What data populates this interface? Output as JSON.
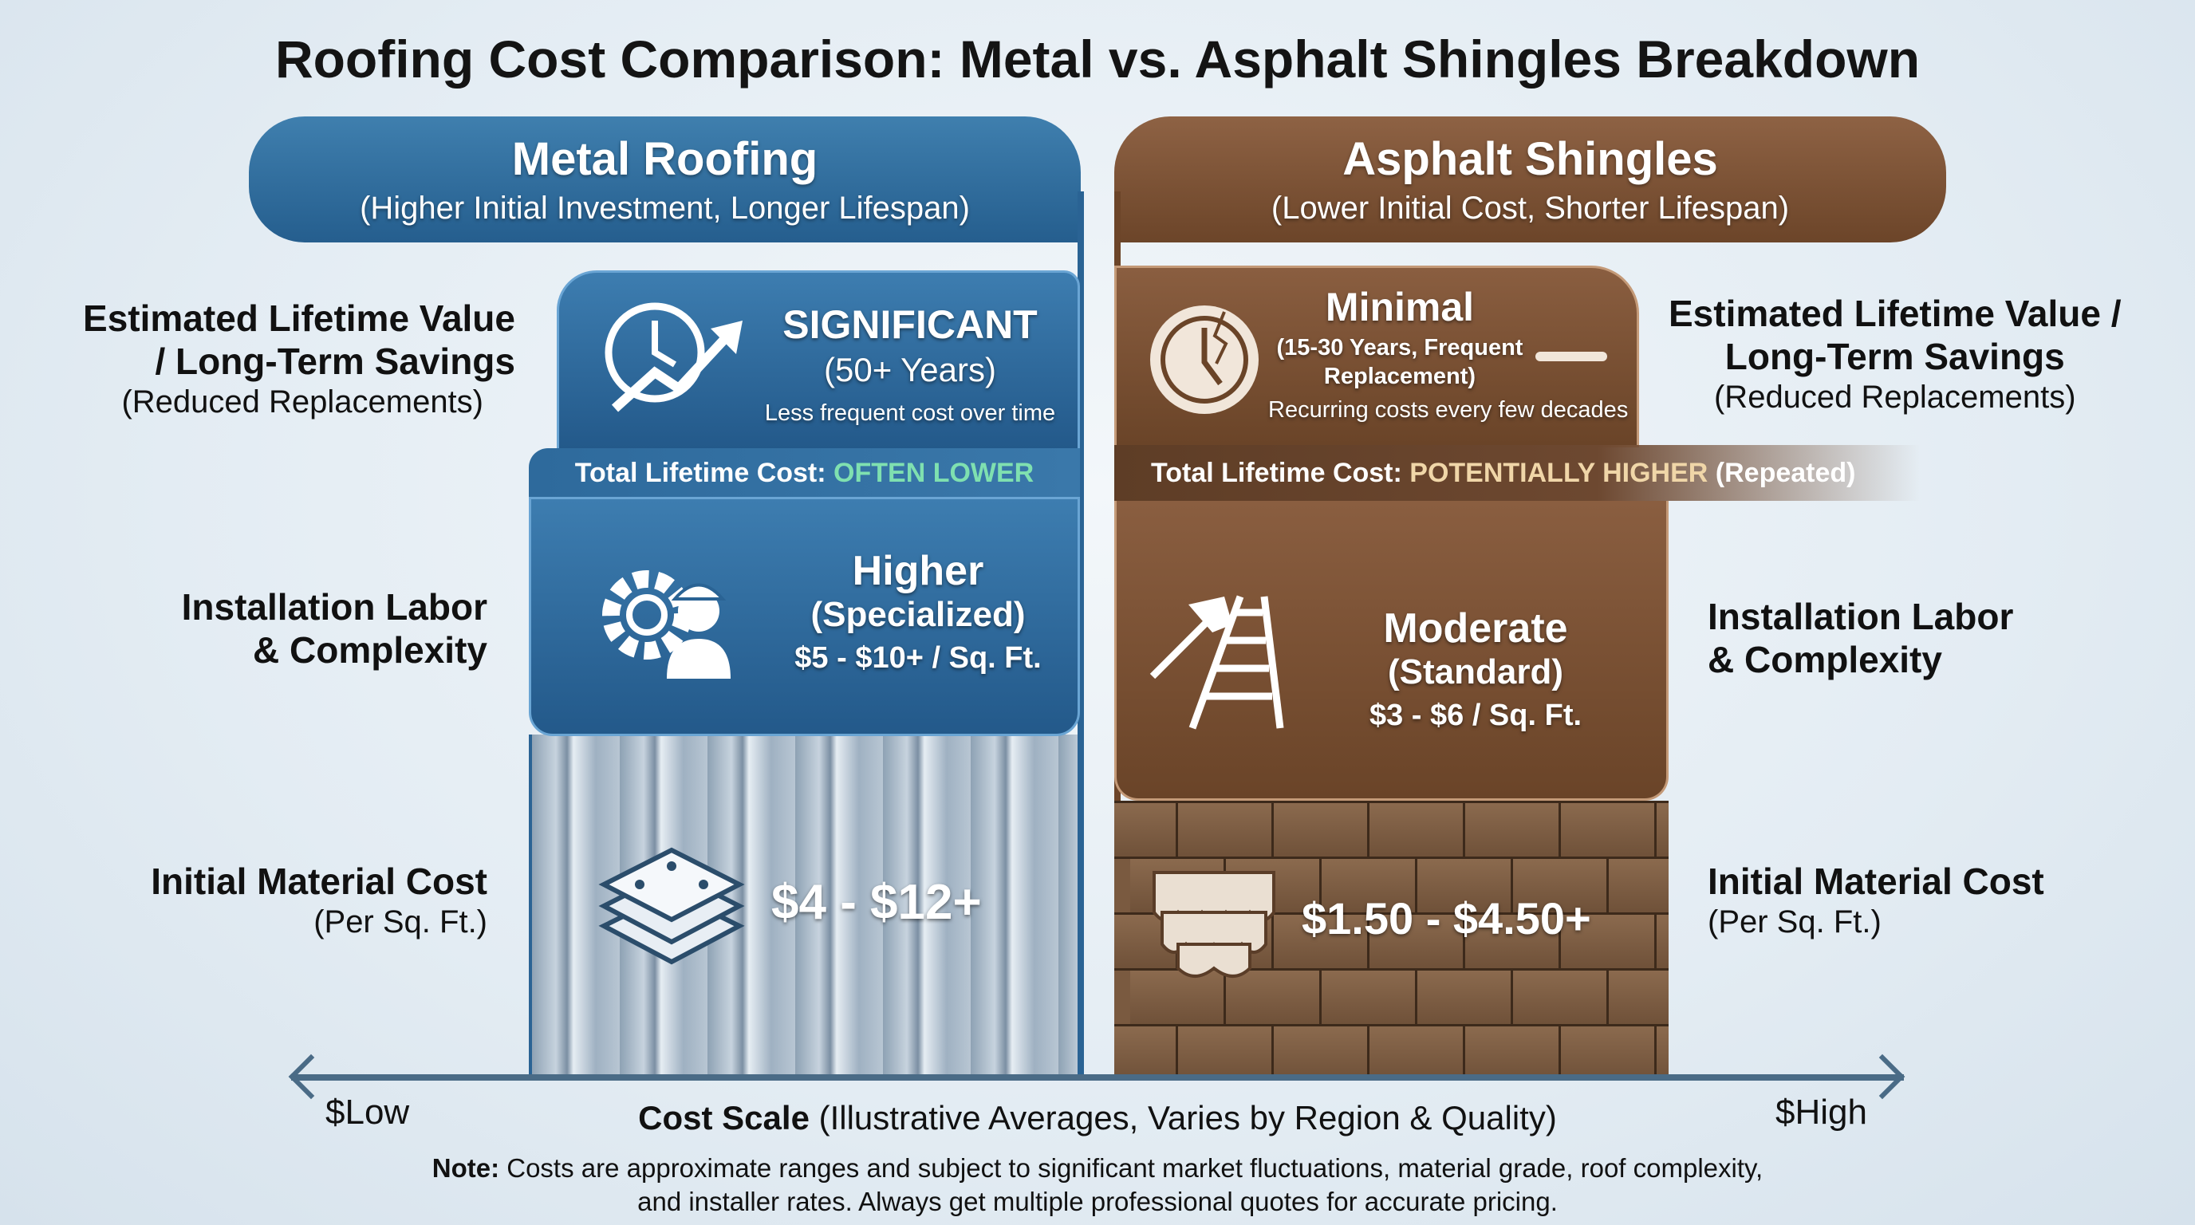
{
  "title": "Roofing Cost Comparison: Metal vs. Asphalt Shingles Breakdown",
  "colors": {
    "metal": "#2a6394",
    "asphalt": "#6c4529",
    "metal_highlight": "#7fe0b0",
    "asphalt_highlight": "#f0d6a8"
  },
  "metal": {
    "header": "Metal Roofing",
    "subheader": "(Higher Initial Investment, Longer Lifespan)",
    "lifetime": {
      "title": "SIGNIFICANT",
      "years": "(50+ Years)",
      "note": "Less frequent cost over time",
      "icon": "clock-growth-arrow-icon"
    },
    "total_label": "Total Lifetime Cost:",
    "total_value": "OFTEN LOWER",
    "install": {
      "title": "Higher",
      "sub": "(Specialized)",
      "price": "$5 - $10+ / Sq. Ft.",
      "icon": "gear-worker-icon"
    },
    "material": {
      "price": "$4 - $12+",
      "icon": "metal-sheets-icon"
    }
  },
  "asphalt": {
    "header": "Asphalt Shingles",
    "subheader": "(Lower Initial Cost, Shorter Lifespan)",
    "lifetime": {
      "title": "Minimal",
      "years": "(15-30 Years, Frequent Replacement)",
      "note": "Recurring costs every few decades",
      "icon": "broken-clock-icon"
    },
    "total_label": "Total Lifetime Cost:",
    "total_value": "POTENTIALLY HIGHER",
    "total_suffix": "(Repeated)",
    "install": {
      "title": "Moderate",
      "sub": "(Standard)",
      "price": "$3 - $6 / Sq. Ft.",
      "icon": "hammer-ladder-icon"
    },
    "material": {
      "price": "$1.50 - $4.50+",
      "icon": "shingles-icon"
    }
  },
  "left_labels": {
    "lifetime": "Estimated Lifetime Value",
    "lifetime2": "/ Long-Term Savings",
    "lifetime_sub": "(Reduced Replacements)",
    "install": "Installation Labor",
    "install2": "& Complexity",
    "material": "Initial Material Cost",
    "material_sub": "(Per Sq. Ft.)"
  },
  "right_labels": {
    "lifetime": "Estimated Lifetime Value /",
    "lifetime2": "Long-Term Savings",
    "lifetime_sub": "(Reduced Replacements)",
    "install": "Installation Labor",
    "install2": "& Complexity",
    "material": "Initial Material Cost",
    "material_sub": "(Per Sq. Ft.)"
  },
  "scale": {
    "low": "$Low",
    "high": "$High",
    "title": "Cost Scale",
    "desc": "(Illustrative Averages, Varies by Region & Quality)"
  },
  "note": {
    "label": "Note:",
    "line1": "Costs are approximate ranges and subject to significant market fluctuations, material grade, roof complexity,",
    "line2": "and installer rates. Always get multiple professional quotes for accurate pricing."
  }
}
